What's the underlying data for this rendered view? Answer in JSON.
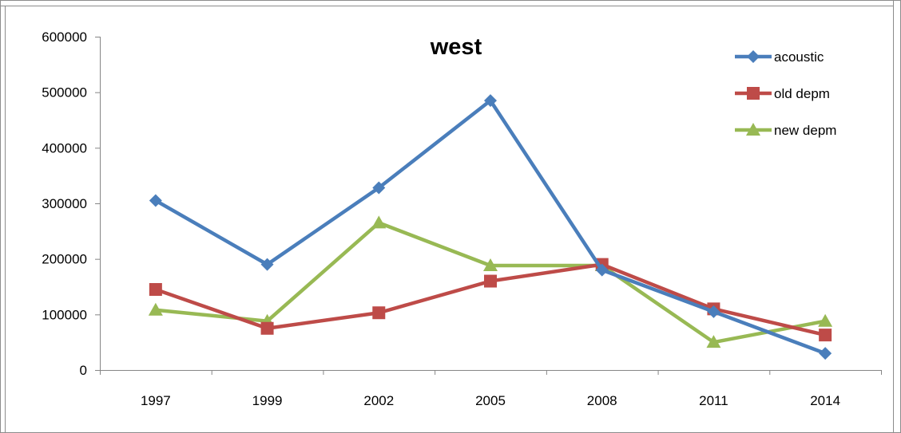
{
  "chart_data": {
    "type": "line",
    "title": "west",
    "categories": [
      "1997",
      "1999",
      "2002",
      "2005",
      "2008",
      "2011",
      "2014"
    ],
    "ylim": [
      0,
      600000
    ],
    "yticks": [
      "0",
      "100000",
      "200000",
      "300000",
      "400000",
      "500000",
      "600000"
    ],
    "grid": false,
    "legend_position": "top-right",
    "series": [
      {
        "name": "acoustic",
        "color": "#4A7EBB",
        "marker": "diamond",
        "values": [
          305000,
          190000,
          328000,
          485000,
          180000,
          105000,
          30000
        ]
      },
      {
        "name": "old depm",
        "color": "#BE4B48",
        "marker": "square",
        "values": [
          145000,
          75000,
          103000,
          160000,
          190000,
          110000,
          63000
        ]
      },
      {
        "name": "new depm",
        "color": "#98B954",
        "marker": "triangle",
        "values": [
          108000,
          88000,
          265000,
          188000,
          188000,
          50000,
          88000
        ]
      }
    ]
  }
}
